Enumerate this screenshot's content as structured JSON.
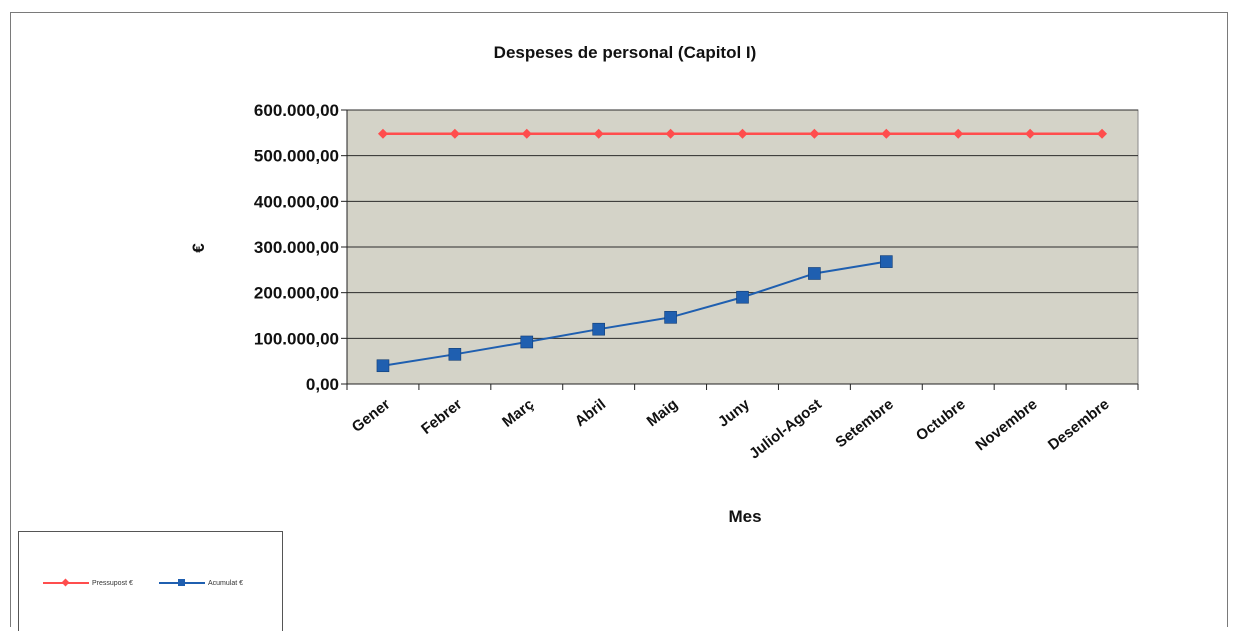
{
  "chart_data": {
    "type": "line",
    "title": "Despeses de personal (Capitol I)",
    "xlabel": "Mes",
    "ylabel": "€",
    "categories": [
      "Gener",
      "Febrer",
      "Març",
      "Abril",
      "Maig",
      "Juny",
      "Juliol-Agost",
      "Setembre",
      "Octubre",
      "Novembre",
      "Desembre"
    ],
    "ylim": [
      0,
      600000
    ],
    "yticks": [
      {
        "value": 0,
        "label": "0,00"
      },
      {
        "value": 100000,
        "label": "100.000,00"
      },
      {
        "value": 200000,
        "label": "200.000,00"
      },
      {
        "value": 300000,
        "label": "300.000,00"
      },
      {
        "value": 400000,
        "label": "400.000,00"
      },
      {
        "value": 500000,
        "label": "500.000,00"
      },
      {
        "value": 600000,
        "label": "600.000,00"
      }
    ],
    "grid": true,
    "legend_position": "bottom-left",
    "plot_background": "#d4d3c8",
    "series": [
      {
        "name": "Pressupost €",
        "color": "#ff4d4d",
        "marker": "diamond",
        "values": [
          548000,
          548000,
          548000,
          548000,
          548000,
          548000,
          548000,
          548000,
          548000,
          548000,
          548000
        ]
      },
      {
        "name": "Acumulat €",
        "color": "#1f5fb0",
        "marker": "square",
        "values": [
          40000,
          65000,
          92000,
          120000,
          146000,
          190000,
          242000,
          268000,
          null,
          null,
          null
        ]
      }
    ]
  }
}
